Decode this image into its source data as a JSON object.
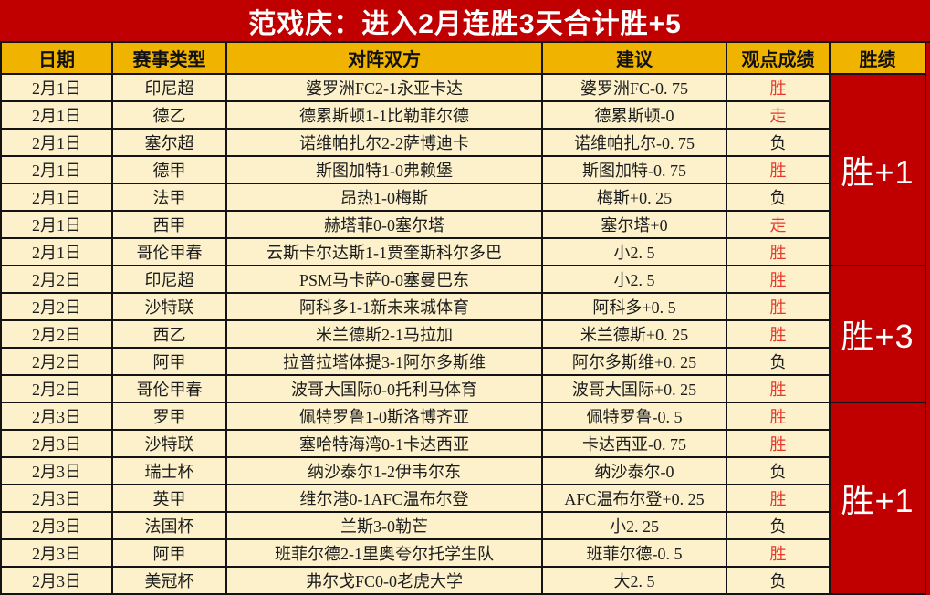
{
  "banner": {
    "title": "范戏庆：进入2月连胜3天合计胜+5"
  },
  "colors": {
    "banner_red": "#C00000",
    "header_gold": "#F0B400",
    "cell_cream": "#FCF1CB",
    "result_red": "#E8382C",
    "grid_line": "#141414"
  },
  "table": {
    "columns": [
      "日期",
      "赛事类型",
      "对阵双方",
      "建议",
      "观点成绩",
      "胜绩"
    ],
    "rows": [
      {
        "date": "2月1日",
        "league": "印尼超",
        "match": "婆罗洲FC2-1永亚卡达",
        "suggestion": "婆罗洲FC-0. 75",
        "result": "胜",
        "result_color": "red"
      },
      {
        "date": "2月1日",
        "league": "德乙",
        "match": "德累斯顿1-1比勒菲尔德",
        "suggestion": "德累斯顿-0",
        "result": "走",
        "result_color": "red"
      },
      {
        "date": "2月1日",
        "league": "塞尔超",
        "match": "诺维帕扎尔2-2萨博迪卡",
        "suggestion": "诺维帕扎尔-0. 75",
        "result": "负",
        "result_color": "black"
      },
      {
        "date": "2月1日",
        "league": "德甲",
        "match": "斯图加特1-0弗赖堡",
        "suggestion": "斯图加特-0. 75",
        "result": "胜",
        "result_color": "red"
      },
      {
        "date": "2月1日",
        "league": "法甲",
        "match": "昂热1-0梅斯",
        "suggestion": "梅斯+0. 25",
        "result": "负",
        "result_color": "black"
      },
      {
        "date": "2月1日",
        "league": "西甲",
        "match": "赫塔菲0-0塞尔塔",
        "suggestion": "塞尔塔+0",
        "result": "走",
        "result_color": "red"
      },
      {
        "date": "2月1日",
        "league": "哥伦甲春",
        "match": "云斯卡尔达斯1-1贾奎斯科尔多巴",
        "suggestion": "小2. 5",
        "result": "胜",
        "result_color": "red"
      },
      {
        "date": "2月2日",
        "league": "印尼超",
        "match": "PSM马卡萨0-0塞曼巴东",
        "suggestion": "小2. 5",
        "result": "胜",
        "result_color": "red"
      },
      {
        "date": "2月2日",
        "league": "沙特联",
        "match": "阿科多1-1新未来城体育",
        "suggestion": "阿科多+0. 5",
        "result": "胜",
        "result_color": "red"
      },
      {
        "date": "2月2日",
        "league": "西乙",
        "match": "米兰德斯2-1马拉加",
        "suggestion": "米兰德斯+0. 25",
        "result": "胜",
        "result_color": "red"
      },
      {
        "date": "2月2日",
        "league": "阿甲",
        "match": "拉普拉塔体提3-1阿尔多斯维",
        "suggestion": "阿尔多斯维+0. 25",
        "result": "负",
        "result_color": "black"
      },
      {
        "date": "2月2日",
        "league": "哥伦甲春",
        "match": "波哥大国际0-0托利马体育",
        "suggestion": "波哥大国际+0. 25",
        "result": "胜",
        "result_color": "red"
      },
      {
        "date": "2月3日",
        "league": "罗甲",
        "match": "佩特罗鲁1-0斯洛博齐亚",
        "suggestion": "佩特罗鲁-0. 5",
        "result": "胜",
        "result_color": "red"
      },
      {
        "date": "2月3日",
        "league": "沙特联",
        "match": "塞哈特海湾0-1卡达西亚",
        "suggestion": "卡达西亚-0. 75",
        "result": "胜",
        "result_color": "red"
      },
      {
        "date": "2月3日",
        "league": "瑞士杯",
        "match": "纳沙泰尔1-2伊韦尔东",
        "suggestion": "纳沙泰尔-0",
        "result": "负",
        "result_color": "black"
      },
      {
        "date": "2月3日",
        "league": "英甲",
        "match": "维尔港0-1AFC温布尔登",
        "suggestion": "AFC温布尔登+0. 25",
        "result": "胜",
        "result_color": "red"
      },
      {
        "date": "2月3日",
        "league": "法国杯",
        "match": "兰斯3-0勒芒",
        "suggestion": "小2. 25",
        "result": "负",
        "result_color": "black"
      },
      {
        "date": "2月3日",
        "league": "阿甲",
        "match": "班菲尔德2-1里奥夸尔托学生队",
        "suggestion": "班菲尔德-0. 5",
        "result": "胜",
        "result_color": "red"
      },
      {
        "date": "2月3日",
        "league": "美冠杯",
        "match": "弗尔戈FC0-0老虎大学",
        "suggestion": "大2. 5",
        "result": "负",
        "result_color": "black"
      }
    ],
    "record_groups": [
      {
        "label": "胜+1",
        "row_span": 7
      },
      {
        "label": "胜+3",
        "row_span": 5
      },
      {
        "label": "胜+1",
        "row_span": 7
      }
    ]
  }
}
